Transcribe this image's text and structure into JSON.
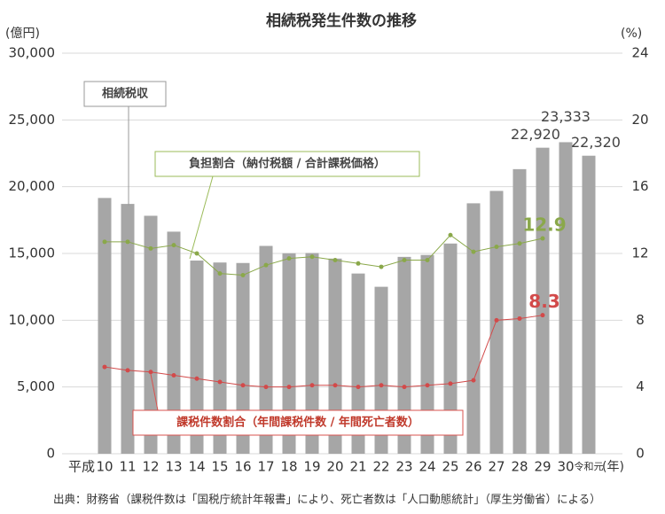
{
  "chart_data": {
    "type": "bar_line",
    "title": "相続税発生件数の推移",
    "y_label": "(億円)",
    "y2_label": "(%)",
    "x_label": "(年)",
    "source": "出典：財務省（課税件数は「国税庁統計年報書」により、死亡者数は「人口動態統計」（厚生労働省）による）",
    "categories": [
      "平成",
      "10",
      "11",
      "12",
      "13",
      "14",
      "15",
      "16",
      "17",
      "18",
      "19",
      "20",
      "21",
      "22",
      "23",
      "24",
      "25",
      "26",
      "27",
      "28",
      "29",
      "30",
      "令和元"
    ],
    "series": [
      {
        "name": "相続税収",
        "color": "#a6a6a6",
        "kind": "bar",
        "values": [
          null,
          19156,
          18710,
          17822,
          16632,
          14468,
          14322,
          14286,
          15564,
          15016,
          15033,
          14615,
          13497,
          12504,
          14744,
          14886,
          15743,
          18757,
          19684,
          21314,
          22920,
          23333,
          22320
        ],
        "value_labels": [
          null,
          null,
          null,
          null,
          null,
          null,
          null,
          null,
          null,
          null,
          null,
          null,
          null,
          null,
          null,
          null,
          null,
          null,
          null,
          null,
          "22,920",
          "23,333",
          "22,320"
        ]
      },
      {
        "name": "負担割合（納付税額 / 合計課税価格）",
        "color": "#8aa84a",
        "kind": "line",
        "axis": "y2",
        "values": [
          null,
          12.7,
          12.7,
          12.3,
          12.5,
          12.0,
          10.8,
          10.7,
          11.3,
          11.7,
          11.8,
          11.6,
          11.4,
          11.2,
          11.6,
          11.6,
          13.1,
          12.1,
          12.4,
          12.6,
          12.9,
          null,
          null
        ],
        "value_labels": [
          null,
          null,
          null,
          null,
          null,
          null,
          null,
          null,
          null,
          null,
          null,
          null,
          null,
          null,
          null,
          null,
          null,
          null,
          null,
          null,
          "12.9",
          null,
          null
        ]
      },
      {
        "name": "課税件数割合（年間課税件数 / 年間死亡者数）",
        "color": "#d24a4a",
        "kind": "line",
        "axis": "y2",
        "values": [
          null,
          5.2,
          5.0,
          4.9,
          4.7,
          4.5,
          4.3,
          4.1,
          4.0,
          4.0,
          4.1,
          4.1,
          4.0,
          4.1,
          4.0,
          4.1,
          4.2,
          4.4,
          8.0,
          8.1,
          8.3,
          null,
          null
        ],
        "value_labels": [
          null,
          null,
          null,
          null,
          null,
          null,
          null,
          null,
          null,
          null,
          null,
          null,
          null,
          null,
          null,
          null,
          null,
          null,
          null,
          null,
          "8.3",
          null,
          null
        ]
      }
    ],
    "ylim": [
      0,
      30000
    ],
    "yticks": [
      0,
      {
        "value": 5000,
        "label": "5,000"
      },
      {
        "value": 10000,
        "label": "10,000"
      },
      {
        "value": 15000,
        "label": "15,000"
      },
      {
        "value": 20000,
        "label": "20,000"
      },
      {
        "value": 25000,
        "label": "25,000"
      },
      {
        "value": 30000,
        "label": "30,000"
      }
    ],
    "y2lim": [
      0,
      24
    ],
    "y2ticks": [
      0,
      4,
      8,
      12,
      16,
      20,
      24
    ],
    "grid": true
  }
}
